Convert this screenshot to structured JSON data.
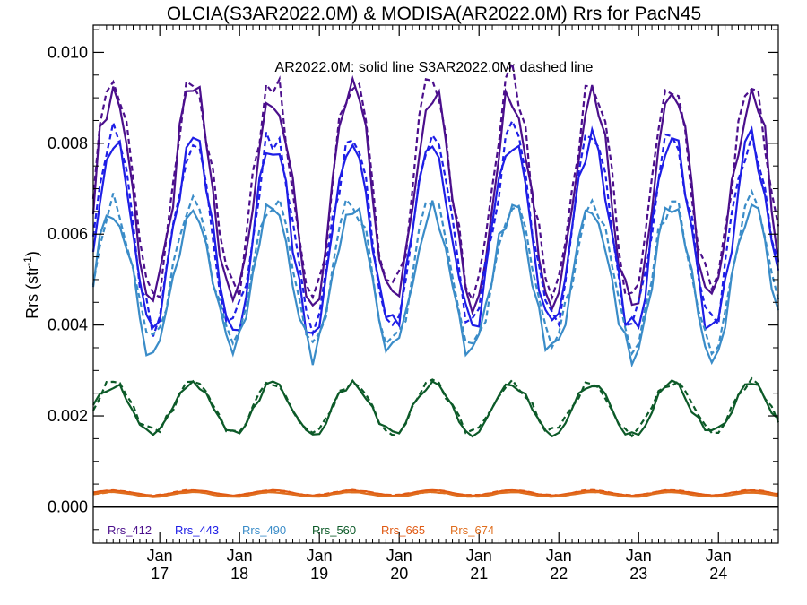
{
  "chart_data": {
    "type": "line",
    "title": "OLCIA(S3AR2022.0M) & MODISA(AR2022.0M)  Rrs for PacN45",
    "annotation": "AR2022.0M: solid line   S3AR2022.0M: dashed line",
    "ylabel": "Rrs (str",
    "ylabel_sup": "-1",
    "ylabel_close": ")",
    "ylim": [
      -0.0008,
      0.0106
    ],
    "xlim": [
      "2016-03",
      "2024-10"
    ],
    "grid": false,
    "legend_placement": "bottom-left, inside plot",
    "y_ticks": [
      "0.000",
      "0.002",
      "0.004",
      "0.006",
      "0.008",
      "0.010"
    ],
    "x_ticks": [
      {
        "month": "Jan",
        "year": "17"
      },
      {
        "month": "Jan",
        "year": "18"
      },
      {
        "month": "Jan",
        "year": "19"
      },
      {
        "month": "Jan",
        "year": "20"
      },
      {
        "month": "Jan",
        "year": "21"
      },
      {
        "month": "Jan",
        "year": "22"
      },
      {
        "month": "Jan",
        "year": "23"
      },
      {
        "month": "Jan",
        "year": "24"
      }
    ],
    "series": [
      {
        "name": "Rrs_412",
        "color": "#4b0f8c",
        "peak": 0.0092,
        "trough": 0.0045
      },
      {
        "name": "Rrs_443",
        "color": "#1e1ee6",
        "peak": 0.008,
        "trough": 0.0039
      },
      {
        "name": "Rrs_490",
        "color": "#3a8cc8",
        "peak": 0.0066,
        "trough": 0.0034
      },
      {
        "name": "Rrs_560",
        "color": "#0c5a28",
        "peak": 0.0027,
        "trough": 0.0016
      },
      {
        "name": "Rrs_665",
        "color": "#e05a14",
        "peak": 0.00036,
        "trough": 0.00025
      },
      {
        "name": "Rrs_674",
        "color": "#e06e1e",
        "peak": 0.00032,
        "trough": 0.00022
      }
    ],
    "styles": {
      "AR2022.0M": "solid",
      "S3AR2022.0M": "dashed"
    }
  }
}
